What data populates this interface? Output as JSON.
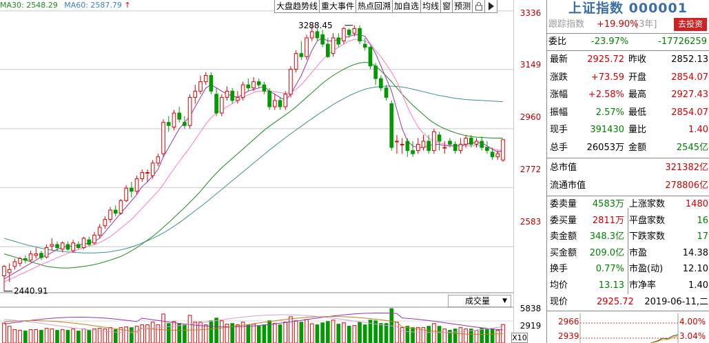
{
  "legend": {
    "ma30": "MA30: 2548.29",
    "ma60": "MA60: 2587.79",
    "ma60_arrow": "↑"
  },
  "toolbar": {
    "items": [
      "大盘趋势线",
      "重大事件",
      "热点回溯",
      "加自选",
      "均线",
      "窗",
      "预测"
    ],
    "lock_icon": "lock-icon",
    "play_icon": "play-icon"
  },
  "price_axis": [
    "3336",
    "3149",
    "2960",
    "2772",
    "2583"
  ],
  "volume_axis": [
    "5838",
    "2919"
  ],
  "annotations": {
    "high": "3288.45",
    "low": "2440.91"
  },
  "volume_dropdown": "成交量",
  "x10_label": "X10",
  "panel": {
    "title": "上证指数 000001",
    "track_label": "跟踪指数",
    "track_value": "+19.90%",
    "track_period": "[3年]",
    "invest_button": "去投资",
    "weibi_label": "委比",
    "weibi_pct": "-23.97%",
    "weibi_val": "-17726259",
    "quote_rows": [
      {
        "l1": "最新",
        "v1": "2925.72",
        "c1": "red",
        "l2": "昨收",
        "v2": "2852.13",
        "c2": "blk"
      },
      {
        "l1": "涨跌",
        "v1": "+73.59",
        "c1": "red",
        "l2": "开盘",
        "v2": "2854.07",
        "c2": "red"
      },
      {
        "l1": "涨幅",
        "v1": "+2.58%",
        "c1": "red",
        "l2": "最高",
        "v2": "2927.43",
        "c2": "red"
      },
      {
        "l1": "振幅",
        "v1": "2.57%",
        "c1": "green",
        "l2": "最低",
        "v2": "2854.07",
        "c2": "red"
      },
      {
        "l1": "现手",
        "v1": "391430",
        "c1": "green",
        "l2": "量比",
        "v2": "1.40",
        "c2": "red"
      },
      {
        "l1": "总手",
        "v1": "26053万",
        "c1": "blk",
        "l2": "金额",
        "v2": "2545亿",
        "c2": "green"
      }
    ],
    "cap_rows": [
      {
        "label": "总市值",
        "value": "321382亿"
      },
      {
        "label": "流通市值",
        "value": "278806亿"
      }
    ],
    "stat_rows": [
      {
        "l1": "委卖量",
        "v1": "4583万",
        "c1": "green",
        "l2": "上涨家数",
        "v2": "1480",
        "c2": "red"
      },
      {
        "l1": "委买量",
        "v1": "2811万",
        "c1": "red",
        "l2": "平盘家数",
        "v2": "16",
        "c2": "green"
      },
      {
        "l1": "卖金额",
        "v1": "348.3亿",
        "c1": "green",
        "l2": "下跌家数",
        "v2": "17",
        "c2": "green"
      },
      {
        "l1": "买金额",
        "v1": "209.0亿",
        "c1": "green",
        "l2": "市盈",
        "v2": "14.38",
        "c2": "blk"
      },
      {
        "l1": "换手",
        "v1": "0.77%",
        "c1": "green",
        "l2": "市盈(动)",
        "v2": "12.10",
        "c2": "blk"
      },
      {
        "l1": "均价",
        "v1": "13.13",
        "c1": "green",
        "l2": "市净率",
        "v2": "1.40",
        "c2": "blk"
      }
    ],
    "now_label": "现价",
    "now_value": "2925.72",
    "now_date": "2019-06-11,二",
    "mini_left": [
      "2966",
      "2939"
    ],
    "mini_right": [
      "4.00%",
      "3.04%"
    ]
  },
  "colors": {
    "up": "#e00000",
    "down": "#009900",
    "ma_purple": "#9b30b0",
    "ma_pink": "#ff77c8",
    "ma_green": "#1a8a1a",
    "ma_blue": "#3a9090",
    "ma_darkgreen": "#2a6a2a"
  },
  "chart_data": {
    "type": "candlestick",
    "y_ticks": [
      3336,
      3149,
      2960,
      2772,
      2583
    ],
    "ylim": [
      2425,
      3360
    ],
    "volume_ticks": [
      5838,
      2919
    ],
    "candles": [
      [
        2490,
        2520,
        2441,
        2525
      ],
      [
        2500,
        2510,
        2470,
        2530
      ],
      [
        2520,
        2535,
        2510,
        2545
      ],
      [
        2530,
        2545,
        2520,
        2550
      ],
      [
        2545,
        2540,
        2530,
        2555
      ],
      [
        2540,
        2560,
        2535,
        2570
      ],
      [
        2555,
        2560,
        2545,
        2580
      ],
      [
        2562,
        2548,
        2540,
        2570
      ],
      [
        2550,
        2580,
        2545,
        2590
      ],
      [
        2585,
        2590,
        2570,
        2610
      ],
      [
        2590,
        2580,
        2570,
        2600
      ],
      [
        2575,
        2595,
        2565,
        2600
      ],
      [
        2590,
        2575,
        2570,
        2600
      ],
      [
        2570,
        2595,
        2565,
        2605
      ],
      [
        2590,
        2580,
        2575,
        2600
      ],
      [
        2580,
        2610,
        2575,
        2615
      ],
      [
        2605,
        2590,
        2585,
        2615
      ],
      [
        2595,
        2620,
        2590,
        2630
      ],
      [
        2620,
        2645,
        2610,
        2655
      ],
      [
        2650,
        2670,
        2640,
        2680
      ],
      [
        2670,
        2700,
        2660,
        2710
      ],
      [
        2700,
        2690,
        2680,
        2715
      ],
      [
        2690,
        2730,
        2685,
        2735
      ],
      [
        2730,
        2770,
        2725,
        2780
      ],
      [
        2770,
        2760,
        2740,
        2790
      ],
      [
        2760,
        2800,
        2750,
        2810
      ],
      [
        2800,
        2820,
        2790,
        2830
      ],
      [
        2820,
        2820,
        2790,
        2830
      ],
      [
        2810,
        2850,
        2800,
        2860
      ],
      [
        2850,
        2870,
        2840,
        2880
      ],
      [
        2880,
        2980,
        2870,
        2990
      ],
      [
        2980,
        2970,
        2950,
        3000
      ],
      [
        2965,
        3010,
        2955,
        3020
      ],
      [
        3010,
        2990,
        2980,
        3030
      ],
      [
        2980,
        2970,
        2960,
        3000
      ],
      [
        2970,
        3060,
        2960,
        3070
      ],
      [
        3060,
        3080,
        3040,
        3100
      ],
      [
        3080,
        3110,
        3070,
        3130
      ],
      [
        3110,
        3130,
        3100,
        3140
      ],
      [
        3130,
        3080,
        3070,
        3140
      ],
      [
        3070,
        3010,
        3000,
        3090
      ],
      [
        3010,
        3060,
        3000,
        3070
      ],
      [
        3060,
        3080,
        3050,
        3095
      ],
      [
        3080,
        3050,
        3040,
        3090
      ],
      [
        3050,
        3060,
        3040,
        3080
      ],
      [
        3060,
        3100,
        3050,
        3110
      ],
      [
        3100,
        3090,
        3080,
        3120
      ],
      [
        3090,
        3110,
        3080,
        3125
      ],
      [
        3110,
        3100,
        3090,
        3120
      ],
      [
        3100,
        3080,
        3070,
        3110
      ],
      [
        3080,
        3030,
        3020,
        3090
      ],
      [
        3030,
        3050,
        3020,
        3070
      ],
      [
        3050,
        3030,
        3020,
        3060
      ],
      [
        3030,
        3070,
        3020,
        3080
      ],
      [
        3070,
        3150,
        3060,
        3160
      ],
      [
        3150,
        3200,
        3140,
        3210
      ],
      [
        3200,
        3190,
        3180,
        3240
      ],
      [
        3190,
        3250,
        3180,
        3260
      ],
      [
        3250,
        3270,
        3240,
        3288
      ],
      [
        3270,
        3250,
        3240,
        3280
      ],
      [
        3260,
        3230,
        3220,
        3275
      ],
      [
        3230,
        3190,
        3185,
        3250
      ],
      [
        3200,
        3250,
        3190,
        3265
      ],
      [
        3250,
        3230,
        3220,
        3265
      ],
      [
        3240,
        3280,
        3230,
        3285
      ],
      [
        3275,
        3260,
        3250,
        3280
      ],
      [
        3265,
        3280,
        3255,
        3290
      ],
      [
        3280,
        3240,
        3230,
        3290
      ],
      [
        3230,
        3220,
        3210,
        3250
      ],
      [
        3220,
        3160,
        3150,
        3225
      ],
      [
        3160,
        3120,
        3100,
        3170
      ],
      [
        3120,
        3090,
        3080,
        3130
      ],
      [
        3090,
        3060,
        3050,
        3100
      ],
      [
        3040,
        2900,
        2890,
        3050
      ],
      [
        2920,
        2920,
        2880,
        2940
      ],
      [
        2910,
        2910,
        2880,
        2930
      ],
      [
        2920,
        2890,
        2870,
        2930
      ],
      [
        2890,
        2880,
        2870,
        2920
      ],
      [
        2890,
        2910,
        2880,
        2930
      ],
      [
        2900,
        2920,
        2890,
        2940
      ],
      [
        2920,
        2890,
        2880,
        2940
      ],
      [
        2890,
        2950,
        2880,
        2960
      ],
      [
        2940,
        2920,
        2890,
        2950
      ],
      [
        2900,
        2900,
        2880,
        2920
      ],
      [
        2920,
        2910,
        2900,
        2930
      ],
      [
        2910,
        2890,
        2880,
        2920
      ],
      [
        2890,
        2910,
        2880,
        2930
      ],
      [
        2910,
        2930,
        2900,
        2940
      ],
      [
        2930,
        2910,
        2900,
        2940
      ],
      [
        2910,
        2920,
        2900,
        2930
      ],
      [
        2920,
        2900,
        2890,
        2935
      ],
      [
        2900,
        2890,
        2880,
        2920
      ],
      [
        2885,
        2870,
        2860,
        2900
      ],
      [
        2870,
        2880,
        2860,
        2890
      ],
      [
        2860,
        2925,
        2854,
        2927
      ]
    ],
    "ma5": [
      2480,
      2490,
      2500,
      2510,
      2520,
      2530,
      2540,
      2550,
      2555,
      2565,
      2575,
      2580,
      2585,
      2585,
      2590,
      2590,
      2595,
      2600,
      2610,
      2630,
      2650,
      2670,
      2690,
      2710,
      2730,
      2750,
      2775,
      2790,
      2810,
      2830,
      2870,
      2900,
      2930,
      2960,
      2980,
      3000,
      3030,
      3060,
      3090,
      3100,
      3090,
      3080,
      3070,
      3065,
      3060,
      3070,
      3080,
      3085,
      3090,
      3095,
      3080,
      3070,
      3060,
      3050,
      3070,
      3100,
      3130,
      3170,
      3210,
      3240,
      3250,
      3240,
      3240,
      3245,
      3250,
      3255,
      3260,
      3260,
      3255,
      3230,
      3200,
      3160,
      3120,
      3080,
      3020,
      2960,
      2920,
      2905,
      2900,
      2900,
      2905,
      2910,
      2910,
      2905,
      2905,
      2905,
      2905,
      2910,
      2915,
      2915,
      2915,
      2905,
      2895,
      2885,
      2890
    ],
    "ma10": [
      2470,
      2478,
      2486,
      2494,
      2502,
      2510,
      2518,
      2526,
      2533,
      2540,
      2548,
      2555,
      2562,
      2568,
      2574,
      2580,
      2585,
      2590,
      2596,
      2605,
      2615,
      2628,
      2642,
      2656,
      2670,
      2688,
      2706,
      2724,
      2742,
      2760,
      2782,
      2808,
      2832,
      2855,
      2878,
      2900,
      2925,
      2950,
      2975,
      2995,
      3010,
      3020,
      3030,
      3040,
      3050,
      3060,
      3068,
      3075,
      3080,
      3080,
      3080,
      3078,
      3075,
      3072,
      3075,
      3085,
      3100,
      3120,
      3140,
      3160,
      3180,
      3195,
      3210,
      3220,
      3230,
      3240,
      3245,
      3245,
      3240,
      3230,
      3210,
      3190,
      3165,
      3140,
      3110,
      3070,
      3030,
      2995,
      2965,
      2945,
      2930,
      2920,
      2915,
      2910,
      2905,
      2905,
      2905,
      2905,
      2905,
      2905,
      2905,
      2900,
      2895,
      2892,
      2890
    ],
    "ma30": [
      2560,
      2555,
      2550,
      2545,
      2540,
      2535,
      2530,
      2525,
      2520,
      2518,
      2516,
      2515,
      2515,
      2516,
      2518,
      2520,
      2523,
      2526,
      2530,
      2535,
      2540,
      2546,
      2552,
      2560,
      2570,
      2580,
      2592,
      2604,
      2616,
      2630,
      2645,
      2660,
      2676,
      2692,
      2708,
      2725,
      2742,
      2760,
      2780,
      2800,
      2818,
      2835,
      2850,
      2865,
      2880,
      2895,
      2910,
      2925,
      2940,
      2955,
      2968,
      2980,
      2992,
      3004,
      3016,
      3030,
      3045,
      3060,
      3075,
      3090,
      3105,
      3118,
      3130,
      3140,
      3150,
      3158,
      3165,
      3170,
      3172,
      3170,
      3160,
      3145,
      3128,
      3110,
      3090,
      3070,
      3052,
      3035,
      3020,
      3005,
      2990,
      2978,
      2968,
      2960,
      2953,
      2947,
      2942,
      2938,
      2935,
      2933,
      2932,
      2931,
      2930,
      2930,
      2930
    ],
    "ma60": [
      2610,
      2605,
      2600,
      2595,
      2590,
      2586,
      2582,
      2578,
      2575,
      2572,
      2570,
      2568,
      2566,
      2565,
      2564,
      2563,
      2563,
      2563,
      2564,
      2565,
      2567,
      2570,
      2573,
      2577,
      2582,
      2588,
      2595,
      2602,
      2610,
      2618,
      2627,
      2637,
      2648,
      2660,
      2672,
      2685,
      2698,
      2711,
      2724,
      2738,
      2752,
      2766,
      2780,
      2794,
      2808,
      2822,
      2836,
      2850,
      2864,
      2878,
      2892,
      2905,
      2918,
      2931,
      2944,
      2956,
      2968,
      2980,
      2992,
      3004,
      3015,
      3026,
      3037,
      3047,
      3056,
      3065,
      3073,
      3080,
      3086,
      3090,
      3093,
      3095,
      3096,
      3096,
      3095,
      3093,
      3090,
      3086,
      3082,
      3078,
      3074,
      3070,
      3066,
      3063,
      3060,
      3057,
      3055,
      3053,
      3052,
      3051,
      3050,
      3049,
      3048,
      3047,
      3046
    ],
    "volume_max": 6300
  }
}
